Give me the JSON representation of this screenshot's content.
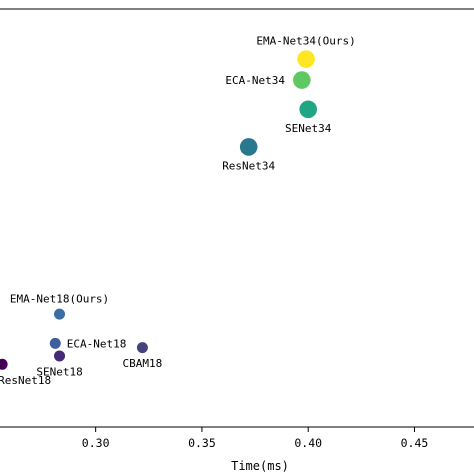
{
  "chart_data": {
    "type": "scatter",
    "xlabel": "Time(ms)",
    "ylabel": "",
    "title": "",
    "xlim": [
      0.255,
      0.478
    ],
    "ylim": [
      0.0,
      1.0
    ],
    "x_ticks": [
      0.3,
      0.35,
      0.4,
      0.45
    ],
    "x_tick_labels": [
      "0.30",
      "0.35",
      "0.40",
      "0.45"
    ],
    "grid": false,
    "colormap": "viridis",
    "points": [
      {
        "label": "EMA-Net34(Ours)",
        "x": 0.399,
        "y": 0.88,
        "size": 1.6,
        "color": "#fde725",
        "label_pos": "above"
      },
      {
        "label": "ECA-Net34",
        "x": 0.397,
        "y": 0.83,
        "size": 1.6,
        "color": "#5ec962",
        "label_pos": "left"
      },
      {
        "label": "SENet34",
        "x": 0.4,
        "y": 0.76,
        "size": 1.6,
        "color": "#21a685",
        "label_pos": "below"
      },
      {
        "label": "ResNet34",
        "x": 0.372,
        "y": 0.67,
        "size": 1.6,
        "color": "#2a788e",
        "label_pos": "below"
      },
      {
        "label": "EMA-Net18(Ours)",
        "x": 0.283,
        "y": 0.27,
        "size": 1.0,
        "color": "#3b6ea5",
        "label_pos": "above"
      },
      {
        "label": "ECA-Net18",
        "x": 0.281,
        "y": 0.2,
        "size": 1.0,
        "color": "#3e5f9b",
        "label_pos": "right"
      },
      {
        "label": "SENet18",
        "x": 0.283,
        "y": 0.17,
        "size": 1.0,
        "color": "#482878",
        "label_pos": "below"
      },
      {
        "label": "CBAM18",
        "x": 0.322,
        "y": 0.19,
        "size": 1.0,
        "color": "#46427f",
        "label_pos": "below"
      },
      {
        "label": "ResNet18",
        "x": 0.256,
        "y": 0.15,
        "size": 1.0,
        "color": "#440154",
        "label_pos": "below"
      }
    ]
  }
}
